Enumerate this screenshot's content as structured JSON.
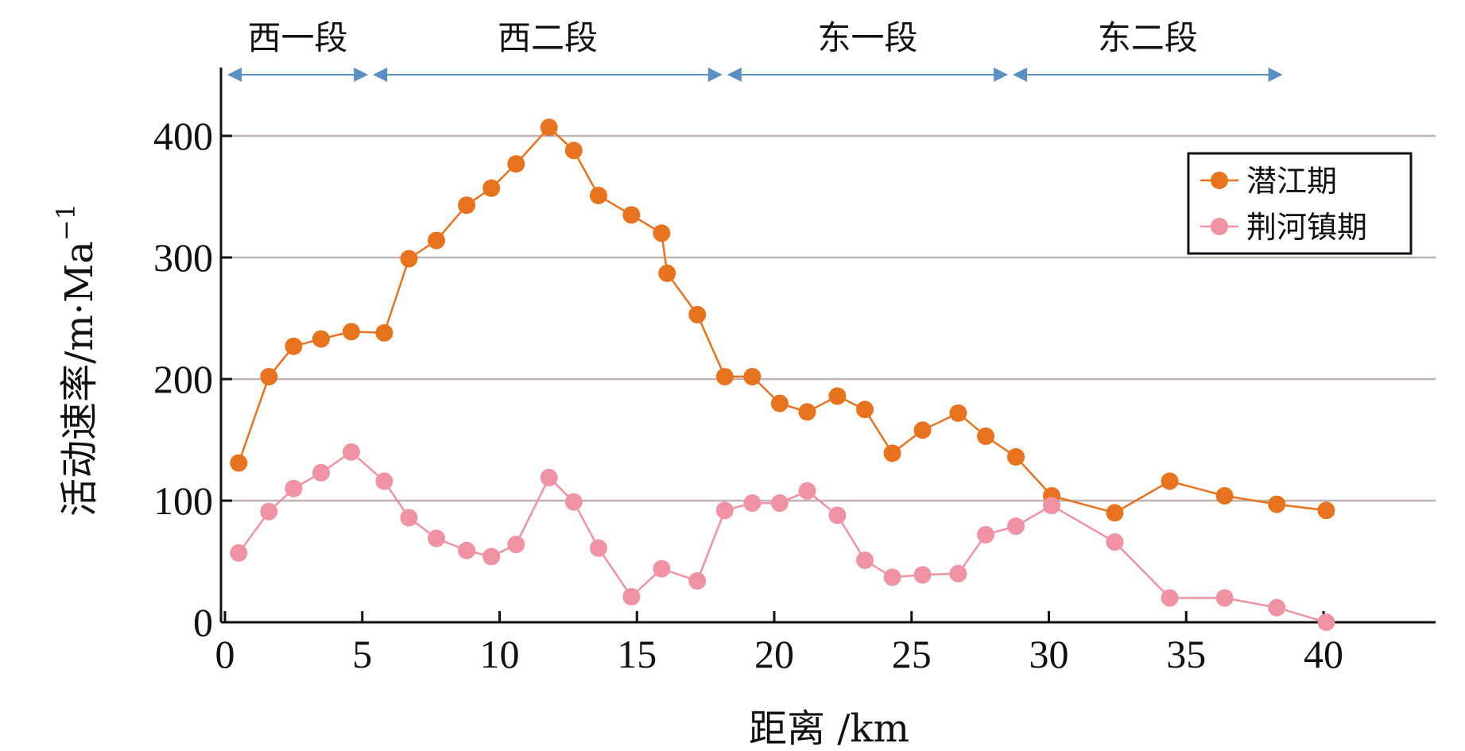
{
  "chart_data": {
    "type": "line",
    "xlabel": "距离 /km",
    "ylabel": "活动速率/m·Ma",
    "ylabel_sup": "−1",
    "xlim": [
      0,
      44
    ],
    "ylim": [
      0,
      460
    ],
    "xticks": [
      0,
      5,
      10,
      15,
      20,
      25,
      30,
      35,
      40
    ],
    "yticks": [
      0,
      100,
      200,
      300,
      400
    ],
    "grid": "horizontal",
    "legend_position": "top-right",
    "segments": [
      {
        "label": "西一段",
        "start": 0,
        "end": 5.3
      },
      {
        "label": "西二段",
        "start": 5.3,
        "end": 18.2
      },
      {
        "label": "东一段",
        "start": 18.2,
        "end": 28.6
      },
      {
        "label": "东二段",
        "start": 28.6,
        "end": 38.6
      }
    ],
    "series": [
      {
        "name": "潜江期",
        "color": "#E8731F",
        "points": [
          [
            0.5,
            131
          ],
          [
            1.6,
            202
          ],
          [
            2.5,
            227
          ],
          [
            3.5,
            233
          ],
          [
            4.6,
            239
          ],
          [
            5.8,
            238
          ],
          [
            6.7,
            299
          ],
          [
            7.7,
            314
          ],
          [
            8.8,
            343
          ],
          [
            9.7,
            357
          ],
          [
            10.6,
            377
          ],
          [
            11.8,
            407
          ],
          [
            12.7,
            388
          ],
          [
            13.6,
            351
          ],
          [
            14.8,
            335
          ],
          [
            15.9,
            320
          ],
          [
            16.1,
            287
          ],
          [
            17.2,
            253
          ],
          [
            18.2,
            202
          ],
          [
            19.2,
            202
          ],
          [
            20.2,
            180
          ],
          [
            21.2,
            173
          ],
          [
            22.3,
            186
          ],
          [
            23.3,
            175
          ],
          [
            24.3,
            139
          ],
          [
            25.4,
            158
          ],
          [
            26.7,
            172
          ],
          [
            27.7,
            153
          ],
          [
            28.8,
            136
          ],
          [
            30.1,
            104
          ],
          [
            32.4,
            90
          ],
          [
            34.4,
            116
          ],
          [
            36.4,
            104
          ],
          [
            38.3,
            97
          ],
          [
            40.1,
            92
          ]
        ]
      },
      {
        "name": "荆河镇期",
        "color": "#EE92A4",
        "points": [
          [
            0.5,
            57
          ],
          [
            1.6,
            91
          ],
          [
            2.5,
            110
          ],
          [
            3.5,
            123
          ],
          [
            4.6,
            140
          ],
          [
            5.8,
            116
          ],
          [
            6.7,
            86
          ],
          [
            7.7,
            69
          ],
          [
            8.8,
            59
          ],
          [
            9.7,
            54
          ],
          [
            10.6,
            64
          ],
          [
            11.8,
            119
          ],
          [
            12.7,
            99
          ],
          [
            13.6,
            61
          ],
          [
            14.8,
            21
          ],
          [
            15.9,
            44
          ],
          [
            17.2,
            34
          ],
          [
            18.2,
            92
          ],
          [
            19.2,
            98
          ],
          [
            20.2,
            98
          ],
          [
            21.2,
            108
          ],
          [
            22.3,
            88
          ],
          [
            23.3,
            51
          ],
          [
            24.3,
            37
          ],
          [
            25.4,
            39
          ],
          [
            26.7,
            40
          ],
          [
            27.7,
            72
          ],
          [
            28.8,
            79
          ],
          [
            30.1,
            96
          ],
          [
            32.4,
            66
          ],
          [
            34.4,
            20
          ],
          [
            36.4,
            20
          ],
          [
            38.3,
            12
          ],
          [
            40.1,
            0
          ]
        ]
      }
    ],
    "arrow_color": "#5A8FC4",
    "grid_color": "#BDB3B3",
    "axis_color": "#111111"
  }
}
